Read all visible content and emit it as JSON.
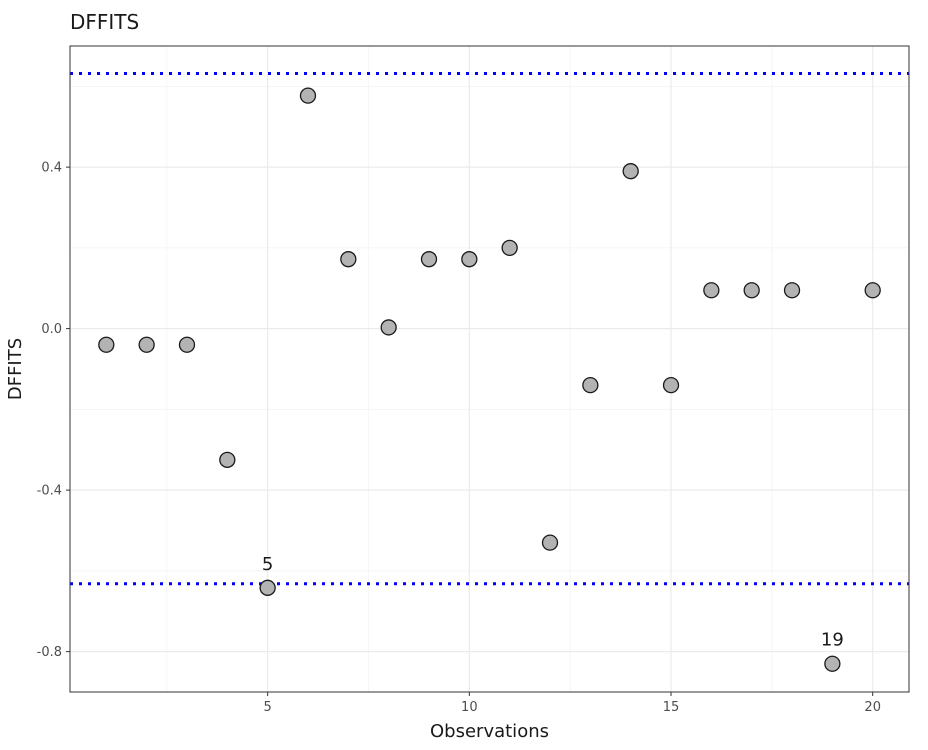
{
  "chart_data": {
    "type": "scatter",
    "title": "DFFITS",
    "xlabel": "Observations",
    "ylabel": "DFFITS",
    "xlim": [
      0.1,
      20.9
    ],
    "ylim": [
      -0.9,
      0.7
    ],
    "x_ticks": [
      5,
      10,
      15,
      20
    ],
    "x_tick_labels": [
      "5",
      "10",
      "15",
      "20"
    ],
    "y_ticks": [
      0.4,
      0.0,
      -0.4,
      -0.8
    ],
    "y_tick_labels": [
      "0.4",
      "0.0",
      "-0.4",
      "-0.8"
    ],
    "grid": true,
    "threshold_lines": [
      {
        "y": 0.632,
        "color": "#0000ff",
        "style": "dotted"
      },
      {
        "y": -0.632,
        "color": "#0000ff",
        "style": "dotted"
      }
    ],
    "point_color": "#b3b3b3",
    "point_border": "#1a1a1a",
    "x": [
      1,
      2,
      3,
      4,
      5,
      6,
      7,
      8,
      9,
      10,
      11,
      12,
      13,
      14,
      15,
      16,
      17,
      18,
      19,
      20
    ],
    "y": [
      -0.04,
      -0.04,
      -0.04,
      -0.325,
      -0.642,
      0.577,
      0.172,
      0.003,
      0.172,
      0.172,
      0.2,
      -0.53,
      -0.14,
      0.39,
      -0.14,
      0.095,
      0.095,
      0.095,
      -0.83,
      0.095
    ],
    "annotations": [
      {
        "x": 5,
        "y": -0.642,
        "text": "5"
      },
      {
        "x": 19,
        "y": -0.83,
        "text": "19"
      }
    ]
  }
}
